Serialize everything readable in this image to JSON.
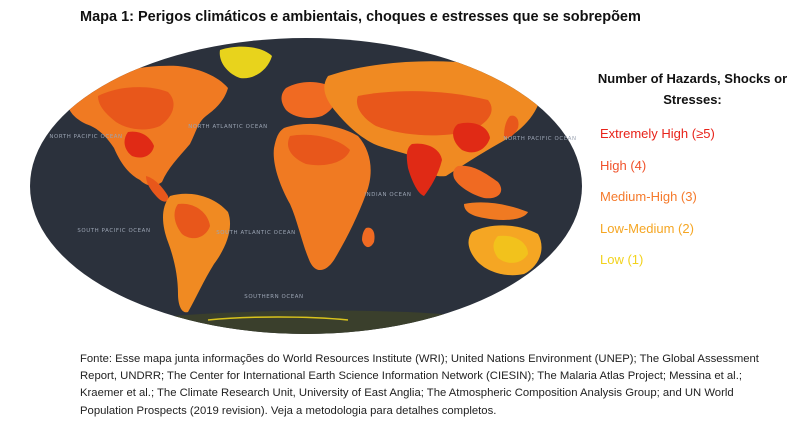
{
  "title": "Mapa 1: Perigos climáticos e ambientais, choques e estresses que se sobrepõem",
  "map": {
    "background_color": "#2b313c",
    "land_color": "#8a8a3a",
    "ocean_labels": [
      "NORTH PACIFIC OCEAN",
      "NORTH ATLANTIC OCEAN",
      "NORTH PACIFIC OCEAN",
      "INDIAN OCEAN",
      "SOUTH PACIFIC OCEAN",
      "SOUTH ATLANTIC OCEAN",
      "SOUTHERN OCEAN"
    ]
  },
  "legend": {
    "title": "Number of Hazards, Shocks or Stresses:",
    "items": [
      {
        "label": "Extremely High (≥5)",
        "color": "#e8231a"
      },
      {
        "label": "High (4)",
        "color": "#f0522a"
      },
      {
        "label": "Medium-High (3)",
        "color": "#f57a2b"
      },
      {
        "label": "Low-Medium (2)",
        "color": "#f5a623"
      },
      {
        "label": "Low (1)",
        "color": "#f2d21c"
      }
    ]
  },
  "source": "Fonte: Esse mapa junta informações do World Resources Institute (WRI); United Nations Environment (UNEP); The Global Assessment Report, UNDRR; The Center for International Earth Science Information Network (CIESIN); The Malaria Atlas Project; Messina et al.; Kraemer et al.; The Climate Research Unit, University of East Anglia; The Atmospheric Composition Analysis Group; and UN World Population Prospects (2019 revision). Veja a metodologia para detalhes completos."
}
